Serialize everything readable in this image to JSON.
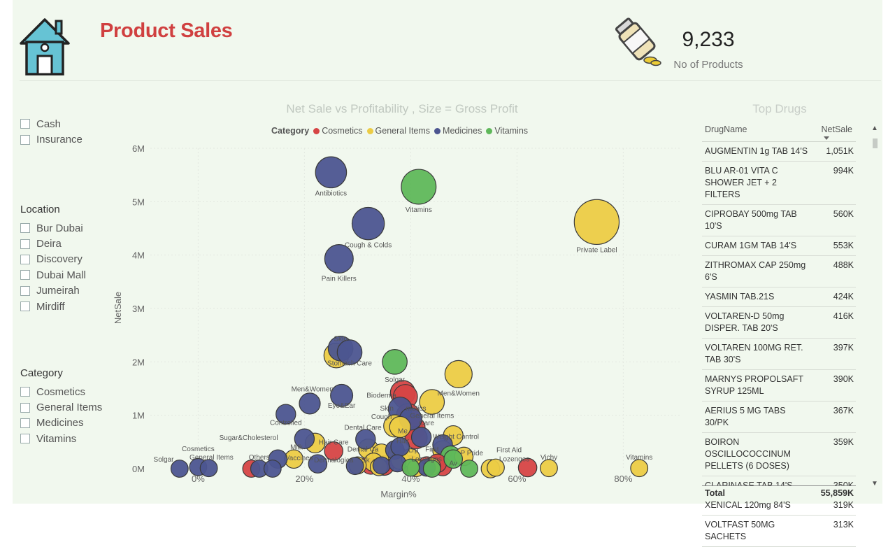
{
  "header": {
    "title": "Product Sales",
    "kpi_value": "9,233",
    "kpi_label": "No of Products"
  },
  "slicers": {
    "payment": {
      "items": [
        "Cash",
        "Insurance"
      ]
    },
    "location": {
      "title": "Location",
      "items": [
        "Bur Dubai",
        "Deira",
        "Discovery",
        "Dubai Mall",
        "Jumeirah",
        "Mirdiff"
      ]
    },
    "category": {
      "title": "Category",
      "items": [
        "Cosmetics",
        "General Items",
        "Medicines",
        "Vitamins"
      ]
    }
  },
  "chart_data": {
    "type": "scatter",
    "title": "Net Sale vs Profitability , Size = Gross Profit",
    "xlabel": "Margin%",
    "ylabel": "NetSale",
    "xlim": [
      -0.09,
      0.91
    ],
    "ylim": [
      0,
      6000000
    ],
    "x_ticks": [
      "0%",
      "20%",
      "40%",
      "60%",
      "80%"
    ],
    "x_tick_values": [
      0,
      0.2,
      0.4,
      0.6,
      0.8
    ],
    "y_ticks": [
      "0M",
      "1M",
      "2M",
      "3M",
      "4M",
      "5M",
      "6M"
    ],
    "y_tick_values": [
      0,
      1000000,
      2000000,
      3000000,
      4000000,
      5000000,
      6000000
    ],
    "grid": true,
    "legend_title": "Category",
    "legend_position": "top",
    "colors": {
      "Cosmetics": "#d64545",
      "General Items": "#eccc45",
      "Medicines": "#4c5590",
      "Vitamins": "#5fb85a"
    },
    "series": [
      {
        "name": "Cosmetics",
        "points": [
          [
            0.385,
            1420000,
            1.3,
            ""
          ],
          [
            0.39,
            1350000,
            1.25,
            ""
          ],
          [
            0.395,
            1000000,
            1.2,
            ""
          ],
          [
            0.4,
            800000,
            1.2,
            ""
          ],
          [
            0.405,
            760000,
            1.2,
            ""
          ],
          [
            0.41,
            580000,
            1.1,
            ""
          ],
          [
            0.255,
            330000,
            0.8,
            ""
          ],
          [
            0.1,
            0,
            0.7,
            ""
          ],
          [
            0.325,
            80000,
            0.9,
            ""
          ],
          [
            0.35,
            60000,
            0.9,
            ""
          ],
          [
            0.4,
            70000,
            0.8,
            ""
          ],
          [
            0.43,
            50000,
            0.8,
            ""
          ],
          [
            0.46,
            40000,
            0.8,
            ""
          ],
          [
            0.62,
            20000,
            0.8,
            ""
          ],
          [
            0.45,
            100000,
            0.8,
            ""
          ]
        ]
      },
      {
        "name": "General Items",
        "points": [
          [
            0.75,
            4620000,
            2.9,
            "Private Label"
          ],
          [
            0.49,
            1770000,
            1.5,
            "Men&Women"
          ],
          [
            0.26,
            2120000,
            1.3,
            ""
          ],
          [
            0.44,
            1250000,
            1.3,
            ""
          ],
          [
            0.37,
            800000,
            1.1,
            ""
          ],
          [
            0.38,
            780000,
            1.0,
            ""
          ],
          [
            0.37,
            150000,
            1.0,
            ""
          ],
          [
            0.22,
            480000,
            0.9,
            ""
          ],
          [
            0.32,
            370000,
            0.9,
            ""
          ],
          [
            0.48,
            620000,
            0.9,
            ""
          ],
          [
            0.345,
            290000,
            0.8,
            ""
          ],
          [
            0.375,
            250000,
            0.8,
            ""
          ],
          [
            0.38,
            160000,
            0.8,
            ""
          ],
          [
            0.4,
            200000,
            0.8,
            ""
          ],
          [
            0.46,
            340000,
            0.9,
            ""
          ],
          [
            0.5,
            230000,
            0.8,
            ""
          ],
          [
            0.18,
            180000,
            0.8,
            ""
          ],
          [
            0.33,
            120000,
            0.8,
            ""
          ],
          [
            0.55,
            0,
            0.8,
            ""
          ],
          [
            0.56,
            20000,
            0.7,
            ""
          ],
          [
            0.66,
            10000,
            0.7,
            ""
          ],
          [
            0.83,
            10000,
            0.7,
            ""
          ],
          [
            0.3,
            60000,
            0.7,
            ""
          ],
          [
            0.34,
            30000,
            0.7,
            ""
          ],
          [
            0.41,
            10000,
            0.7,
            ""
          ],
          [
            0.44,
            40000,
            0.7,
            ""
          ]
        ]
      },
      {
        "name": "Medicines",
        "points": [
          [
            0.25,
            5550000,
            1.8,
            "Antibiotics"
          ],
          [
            0.32,
            4590000,
            1.9,
            "Cough & Colds"
          ],
          [
            0.265,
            3930000,
            1.6,
            "Pain Killers"
          ],
          [
            0.268,
            2250000,
            1.3,
            ""
          ],
          [
            0.285,
            2180000,
            1.3,
            ""
          ],
          [
            0.27,
            1370000,
            1.1,
            ""
          ],
          [
            0.21,
            1220000,
            1.0,
            ""
          ],
          [
            0.165,
            1020000,
            0.9,
            ""
          ],
          [
            0.38,
            1120000,
            1.2,
            ""
          ],
          [
            0.4,
            930000,
            1.1,
            ""
          ],
          [
            0.42,
            590000,
            0.9,
            ""
          ],
          [
            0.315,
            550000,
            0.9,
            ""
          ],
          [
            0.2,
            560000,
            0.9,
            ""
          ],
          [
            0.46,
            450000,
            0.9,
            ""
          ],
          [
            0.37,
            350000,
            0.8,
            ""
          ],
          [
            0.38,
            410000,
            0.8,
            ""
          ],
          [
            0.15,
            180000,
            0.8,
            ""
          ],
          [
            -0.035,
            0,
            0.7,
            ""
          ],
          [
            0.0,
            30000,
            0.7,
            ""
          ],
          [
            0.02,
            10000,
            0.7,
            ""
          ],
          [
            0.115,
            0,
            0.7,
            ""
          ],
          [
            0.14,
            0,
            0.7,
            ""
          ],
          [
            0.225,
            90000,
            0.8,
            ""
          ],
          [
            0.295,
            50000,
            0.7,
            ""
          ],
          [
            0.345,
            60000,
            0.7,
            ""
          ],
          [
            0.375,
            100000,
            0.7,
            ""
          ],
          [
            0.43,
            20000,
            0.7,
            ""
          ]
        ]
      },
      {
        "name": "Vitamins",
        "points": [
          [
            0.415,
            5280000,
            2.1,
            "Vitamins"
          ],
          [
            0.37,
            2000000,
            1.3,
            "Solgar"
          ],
          [
            0.475,
            240000,
            0.9,
            ""
          ],
          [
            0.48,
            180000,
            0.8,
            ""
          ],
          [
            0.51,
            0,
            0.7,
            ""
          ],
          [
            0.4,
            20000,
            0.7,
            ""
          ],
          [
            0.44,
            0,
            0.7,
            ""
          ]
        ]
      }
    ],
    "annotations": [
      {
        "text": "Skin",
        "x": 0.268,
        "y": 2390000
      },
      {
        "text": "Stomach Care",
        "x": 0.285,
        "y": 1930000
      },
      {
        "text": "Men&Women",
        "x": 0.215,
        "y": 1450000
      },
      {
        "text": "Eye&Ear",
        "x": 0.27,
        "y": 1140000
      },
      {
        "text": "Bioderma",
        "x": 0.345,
        "y": 1330000
      },
      {
        "text": "Skin",
        "x": 0.355,
        "y": 1090000
      },
      {
        "text": "metics",
        "x": 0.41,
        "y": 1090000
      },
      {
        "text": "Cough",
        "x": 0.345,
        "y": 930000
      },
      {
        "text": "General Items",
        "x": 0.44,
        "y": 950000
      },
      {
        "text": "Care",
        "x": 0.43,
        "y": 810000
      },
      {
        "text": "Controlled",
        "x": 0.165,
        "y": 820000
      },
      {
        "text": "Dental Care",
        "x": 0.31,
        "y": 730000
      },
      {
        "text": "Me",
        "x": 0.385,
        "y": 660000
      },
      {
        "text": "Weight Control",
        "x": 0.485,
        "y": 560000
      },
      {
        "text": "Sugar&Cholesterol",
        "x": 0.095,
        "y": 540000
      },
      {
        "text": "Hair Care",
        "x": 0.255,
        "y": 450000
      },
      {
        "text": "Hair",
        "x": 0.385,
        "y": 480000
      },
      {
        "text": "Cosmetics",
        "x": 0.0,
        "y": 330000
      },
      {
        "text": "Milk",
        "x": 0.185,
        "y": 360000
      },
      {
        "text": "Dental Ca",
        "x": 0.31,
        "y": 320000
      },
      {
        "text": "Lrp",
        "x": 0.405,
        "y": 310000
      },
      {
        "text": "First",
        "x": 0.44,
        "y": 320000
      },
      {
        "text": "First Aid",
        "x": 0.585,
        "y": 310000
      },
      {
        "text": "P Pride",
        "x": 0.515,
        "y": 250000
      },
      {
        "text": "General Items",
        "x": 0.025,
        "y": 170000
      },
      {
        "text": "Others",
        "x": 0.115,
        "y": 170000
      },
      {
        "text": "Vaccines",
        "x": 0.19,
        "y": 160000
      },
      {
        "text": "Dermalogica",
        "x": 0.255,
        "y": 120000
      },
      {
        "text": "Sk",
        "x": 0.315,
        "y": 120000
      },
      {
        "text": "Lozenges",
        "x": 0.43,
        "y": 140000
      },
      {
        "text": "Av",
        "x": 0.48,
        "y": 60000
      },
      {
        "text": "Lozenges",
        "x": 0.595,
        "y": 140000
      },
      {
        "text": "Vichy",
        "x": 0.66,
        "y": 170000
      },
      {
        "text": "Vitamins",
        "x": 0.83,
        "y": 170000
      },
      {
        "text": "Solgar",
        "x": -0.065,
        "y": 130000
      }
    ]
  },
  "top_drugs": {
    "title": "Top Drugs",
    "col_drug": "DrugName",
    "col_netsale": "NetSale",
    "rows": [
      {
        "drug": "AUGMENTIN 1g TAB 14'S",
        "netsale": "1,051K"
      },
      {
        "drug": "BLU AR-01 VITA C SHOWER JET + 2 FILTERS",
        "netsale": "994K"
      },
      {
        "drug": "CIPROBAY 500mg TAB 10'S",
        "netsale": "560K"
      },
      {
        "drug": "CURAM 1GM TAB 14'S",
        "netsale": "553K"
      },
      {
        "drug": "ZITHROMAX CAP 250mg 6'S",
        "netsale": "488K"
      },
      {
        "drug": "YASMIN TAB.21S",
        "netsale": "424K"
      },
      {
        "drug": "VOLTAREN-D 50mg DISPER. TAB 20'S",
        "netsale": "416K"
      },
      {
        "drug": "VOLTAREN 100MG RET. TAB 30'S",
        "netsale": "397K"
      },
      {
        "drug": "MARNYS PROPOLSAFT SYRUP 125ML",
        "netsale": "390K"
      },
      {
        "drug": "AERIUS 5 MG TABS 30/PK",
        "netsale": "367K"
      },
      {
        "drug": "BOIRON OSCILLOCOCCINUM PELLETS (6 DOSES)",
        "netsale": "359K"
      },
      {
        "drug": "CLARINASE TAB 14'S",
        "netsale": "350K"
      },
      {
        "drug": "XENICAL 120mg 84'S",
        "netsale": "319K"
      },
      {
        "drug": "VOLTFAST 50MG SACHETS",
        "netsale": "313K"
      }
    ],
    "total_label": "Total",
    "total_value": "55,859K"
  },
  "icons": {
    "home": "house-icon",
    "kpi": "pill-bottle-icon"
  }
}
